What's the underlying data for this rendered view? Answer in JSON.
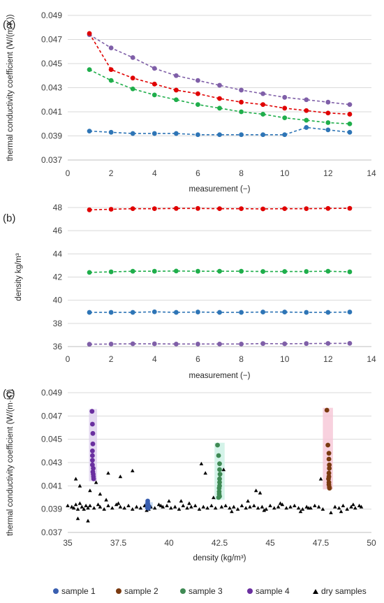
{
  "colors": {
    "sample1": "#2e75b6",
    "sample2": "#e00000",
    "sample3": "#1fae4b",
    "sample4": "#7f5fa8",
    "c_sample1": "#3a5fb0",
    "c_sample2": "#7a3a10",
    "c_sample3": "#3f8a54",
    "c_sample4": "#6a2fa0",
    "dry": "#000000",
    "grid": "#d9d9d9",
    "axis": "#bfbfbf"
  },
  "chart_data": [
    {
      "id": "a",
      "label": "(a)",
      "type": "line",
      "xlabel": "measurement (−)",
      "ylabel": "thermal conductivity coefficient (W/(m·K))",
      "xlim": [
        0,
        14
      ],
      "ylim": [
        0.037,
        0.049
      ],
      "xticks": [
        0,
        2,
        4,
        6,
        8,
        10,
        12,
        14
      ],
      "xtick_labels": [
        "0",
        "2",
        "4",
        "6",
        "8",
        "10",
        "12",
        "14"
      ],
      "yticks": [
        0.037,
        0.039,
        0.041,
        0.043,
        0.045,
        0.047,
        0.049
      ],
      "ytick_labels": [
        "0.037",
        "0.039",
        "0.041",
        "0.043",
        "0.045",
        "0.047",
        "0.049"
      ],
      "x": [
        1,
        2,
        3,
        4,
        5,
        6,
        7,
        8,
        9,
        10,
        11,
        12,
        13
      ],
      "series": [
        {
          "color_key": "sample4",
          "values": [
            0.0474,
            0.0463,
            0.0455,
            0.0446,
            0.044,
            0.0436,
            0.0432,
            0.0428,
            0.0425,
            0.0422,
            0.042,
            0.0418,
            0.0416
          ]
        },
        {
          "color_key": "sample2",
          "values": [
            0.0475,
            0.0445,
            0.0438,
            0.0433,
            0.0428,
            0.0425,
            0.0421,
            0.0418,
            0.0416,
            0.0413,
            0.0411,
            0.0409,
            0.0408
          ]
        },
        {
          "color_key": "sample3",
          "values": [
            0.0445,
            0.0436,
            0.0429,
            0.0424,
            0.042,
            0.0416,
            0.0413,
            0.041,
            0.0408,
            0.0405,
            0.0403,
            0.0401,
            0.04
          ]
        },
        {
          "color_key": "sample1",
          "values": [
            0.0394,
            0.0393,
            0.0392,
            0.0392,
            0.0392,
            0.0391,
            0.0391,
            0.0391,
            0.0391,
            0.0391,
            0.0397,
            0.0395,
            0.0393
          ]
        }
      ]
    },
    {
      "id": "b",
      "label": "(b)",
      "type": "line",
      "xlabel": "measurement (−)",
      "ylabel": "density kg/m³",
      "xlim": [
        0,
        14
      ],
      "ylim": [
        36,
        48
      ],
      "xticks": [
        0,
        2,
        4,
        6,
        8,
        10,
        12,
        14
      ],
      "xtick_labels": [
        "0",
        "2",
        "4",
        "6",
        "8",
        "10",
        "12",
        "14"
      ],
      "yticks": [
        36,
        38,
        40,
        42,
        44,
        46,
        48
      ],
      "ytick_labels": [
        "36",
        "38",
        "40",
        "42",
        "44",
        "46",
        "48"
      ],
      "x": [
        1,
        2,
        3,
        4,
        5,
        6,
        7,
        8,
        9,
        10,
        11,
        12,
        13
      ],
      "series": [
        {
          "color_key": "sample2",
          "values": [
            47.8,
            47.85,
            47.9,
            47.9,
            47.92,
            47.92,
            47.9,
            47.9,
            47.88,
            47.9,
            47.9,
            47.92,
            47.93
          ]
        },
        {
          "color_key": "sample3",
          "values": [
            42.4,
            42.45,
            42.5,
            42.5,
            42.52,
            42.5,
            42.5,
            42.5,
            42.48,
            42.48,
            42.48,
            42.5,
            42.45
          ]
        },
        {
          "color_key": "sample1",
          "values": [
            38.95,
            38.95,
            38.95,
            39.0,
            38.95,
            38.98,
            38.95,
            38.95,
            38.98,
            38.98,
            38.95,
            38.95,
            38.98
          ]
        },
        {
          "color_key": "sample4",
          "values": [
            36.2,
            36.22,
            36.24,
            36.24,
            36.22,
            36.22,
            36.22,
            36.22,
            36.26,
            36.24,
            36.26,
            36.27,
            36.28
          ]
        }
      ]
    },
    {
      "id": "c",
      "label": "(c)",
      "type": "scatter",
      "xlabel": "density (kg/m³)",
      "ylabel": "thermal conductivity coefficient (W/(m·K))",
      "xlim": [
        35,
        50
      ],
      "ylim": [
        0.037,
        0.049
      ],
      "xticks": [
        35,
        37.5,
        40,
        42.5,
        45,
        47.5,
        50
      ],
      "xtick_labels": [
        "35",
        "37.5",
        "40",
        "42.5",
        "45",
        "47.5",
        "50"
      ],
      "yticks": [
        0.037,
        0.039,
        0.041,
        0.043,
        0.045,
        0.047,
        0.049
      ],
      "ytick_labels": [
        "0.037",
        "0.039",
        "0.041",
        "0.043",
        "0.045",
        "0.047",
        "0.049"
      ],
      "legend": [
        {
          "label": "sample 1",
          "color_key": "c_sample1",
          "marker": "circle"
        },
        {
          "label": "sample 2",
          "color_key": "c_sample2",
          "marker": "circle"
        },
        {
          "label": "sample 3",
          "color_key": "c_sample3",
          "marker": "circle"
        },
        {
          "label": "sample 4",
          "color_key": "c_sample4",
          "marker": "circle"
        },
        {
          "label": "dry samples",
          "color_key": "dry",
          "marker": "triangle"
        }
      ],
      "highlights": [
        {
          "color_key": "sample1",
          "xlim": [
            38.8,
            39.2
          ],
          "ylim": [
            0.039,
            0.0396
          ]
        },
        {
          "color_key": "sample2",
          "xlim": [
            47.6,
            48.1
          ],
          "ylim": [
            0.0407,
            0.0477
          ]
        },
        {
          "color_key": "sample3",
          "xlim": [
            42.25,
            42.75
          ],
          "ylim": [
            0.0398,
            0.0447
          ]
        },
        {
          "color_key": "sample4",
          "xlim": [
            36.05,
            36.45
          ],
          "ylim": [
            0.0414,
            0.0476
          ]
        }
      ],
      "series": [
        {
          "name": "sample 1",
          "color_key": "c_sample1",
          "marker": "circle",
          "x": [
            38.95,
            38.95,
            38.95,
            39.0,
            38.95,
            38.98,
            38.95,
            38.95,
            38.98,
            38.98,
            38.95,
            38.95,
            38.98
          ],
          "y": [
            0.0394,
            0.0393,
            0.0392,
            0.0392,
            0.0392,
            0.0391,
            0.0391,
            0.0391,
            0.0391,
            0.0391,
            0.0397,
            0.0395,
            0.0393
          ]
        },
        {
          "name": "sample 2",
          "color_key": "c_sample2",
          "marker": "circle",
          "x": [
            47.8,
            47.85,
            47.9,
            47.9,
            47.92,
            47.92,
            47.9,
            47.9,
            47.88,
            47.9,
            47.9,
            47.92,
            47.93
          ],
          "y": [
            0.0475,
            0.0445,
            0.0438,
            0.0433,
            0.0428,
            0.0425,
            0.0421,
            0.0418,
            0.0416,
            0.0413,
            0.0411,
            0.0409,
            0.0408
          ]
        },
        {
          "name": "sample 3",
          "color_key": "c_sample3",
          "marker": "circle",
          "x": [
            42.4,
            42.45,
            42.5,
            42.5,
            42.52,
            42.5,
            42.5,
            42.5,
            42.48,
            42.48,
            42.48,
            42.5,
            42.45
          ],
          "y": [
            0.0445,
            0.0436,
            0.0429,
            0.0424,
            0.042,
            0.0416,
            0.0413,
            0.041,
            0.0408,
            0.0405,
            0.0403,
            0.0401,
            0.04
          ]
        },
        {
          "name": "sample 4",
          "color_key": "c_sample4",
          "marker": "circle",
          "x": [
            36.2,
            36.22,
            36.24,
            36.24,
            36.22,
            36.22,
            36.22,
            36.22,
            36.26,
            36.24,
            36.26,
            36.27,
            36.28
          ],
          "y": [
            0.0474,
            0.0463,
            0.0455,
            0.0446,
            0.044,
            0.0436,
            0.0432,
            0.0428,
            0.0425,
            0.0422,
            0.042,
            0.0418,
            0.0416
          ]
        },
        {
          "name": "dry samples",
          "color_key": "dry",
          "marker": "triangle",
          "x": [
            35.0,
            35.2,
            35.3,
            35.4,
            35.5,
            35.6,
            35.7,
            35.8,
            35.9,
            36.0,
            36.1,
            36.3,
            36.5,
            36.6,
            36.8,
            37.0,
            37.2,
            37.4,
            37.6,
            37.8,
            38.0,
            38.2,
            38.4,
            38.6,
            38.8,
            39.1,
            39.3,
            39.5,
            39.7,
            39.9,
            40.1,
            40.3,
            40.5,
            40.7,
            40.9,
            41.1,
            41.3,
            41.5,
            41.7,
            41.9,
            42.1,
            42.3,
            42.6,
            42.8,
            43.0,
            43.2,
            43.4,
            43.6,
            43.8,
            44.0,
            44.2,
            44.4,
            44.6,
            44.8,
            45.0,
            45.2,
            45.4,
            45.6,
            45.8,
            46.0,
            46.2,
            46.4,
            46.6,
            46.8,
            47.0,
            47.2,
            47.4,
            47.6,
            48.2,
            48.4,
            48.6,
            48.8,
            49.0,
            49.2,
            49.4,
            49.5,
            35.4,
            35.6,
            36.1,
            36.4,
            36.6,
            37.0,
            37.6,
            38.2,
            41.6,
            41.8,
            42.7,
            44.3,
            44.5,
            47.5,
            35.5,
            36.0,
            37.5,
            39.0,
            40.0,
            41.0,
            43.9,
            45.5,
            46.5,
            48.0,
            38.9,
            39.6,
            40.6,
            42.2,
            43.1,
            44.7,
            46.9,
            48.5,
            49.1,
            36.9
          ],
          "y": [
            0.0393,
            0.0392,
            0.0391,
            0.0394,
            0.039,
            0.0395,
            0.0392,
            0.039,
            0.0393,
            0.0391,
            0.0393,
            0.0391,
            0.0394,
            0.0392,
            0.039,
            0.0393,
            0.0391,
            0.0394,
            0.0392,
            0.0391,
            0.0393,
            0.039,
            0.0392,
            0.0391,
            0.0393,
            0.0392,
            0.0391,
            0.0394,
            0.0392,
            0.0393,
            0.0391,
            0.0392,
            0.039,
            0.0393,
            0.0391,
            0.0392,
            0.0393,
            0.039,
            0.0392,
            0.0391,
            0.0393,
            0.0391,
            0.0392,
            0.0393,
            0.0391,
            0.0392,
            0.039,
            0.0393,
            0.0391,
            0.0392,
            0.0393,
            0.0391,
            0.0392,
            0.039,
            0.0393,
            0.0391,
            0.0392,
            0.0394,
            0.0391,
            0.0392,
            0.0393,
            0.0391,
            0.039,
            0.0392,
            0.0391,
            0.0393,
            0.0392,
            0.039,
            0.0392,
            0.0391,
            0.0393,
            0.039,
            0.0392,
            0.0391,
            0.0393,
            0.0392,
            0.0416,
            0.041,
            0.0406,
            0.0413,
            0.0403,
            0.0421,
            0.0418,
            0.0423,
            0.0429,
            0.0421,
            0.0424,
            0.0406,
            0.0404,
            0.0416,
            0.0382,
            0.038,
            0.0395,
            0.039,
            0.0397,
            0.0395,
            0.0397,
            0.0395,
            0.0388,
            0.0387,
            0.0389,
            0.0393,
            0.0397,
            0.04,
            0.0388,
            0.0389,
            0.0391,
            0.0388,
            0.0394,
            0.0398
          ]
        }
      ]
    }
  ]
}
